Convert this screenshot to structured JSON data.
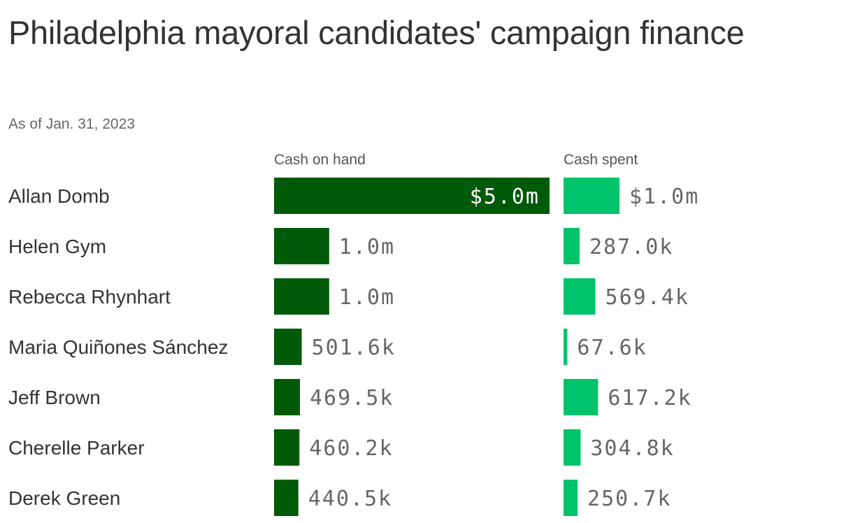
{
  "header": {
    "title": "Philadelphia mayoral candidates' campaign finance",
    "subtitle": "As of Jan. 31, 2023"
  },
  "colors": {
    "cash_on_hand": "#005a09",
    "cash_spent": "#00c36b"
  },
  "chart_data": {
    "type": "bar",
    "categories": [
      "Allan Domb",
      "Helen Gym",
      "Rebecca Rhynhart",
      "Maria Quiñones Sánchez",
      "Jeff Brown",
      "Cherelle Parker",
      "Derek Green"
    ],
    "series": [
      {
        "name": "Cash on hand",
        "values": [
          5000000,
          1000000,
          1000000,
          501600,
          469500,
          460200,
          440500
        ],
        "labels": [
          "$5.0m",
          "1.0m",
          "1.0m",
          "501.6k",
          "469.5k",
          "460.2k",
          "440.5k"
        ]
      },
      {
        "name": "Cash spent",
        "values": [
          1000000,
          287000,
          569400,
          67600,
          617200,
          304800,
          250700
        ],
        "labels": [
          "$1.0m",
          "287.0k",
          "569.4k",
          "67.6k",
          "617.2k",
          "304.8k",
          "250.7k"
        ]
      }
    ]
  }
}
